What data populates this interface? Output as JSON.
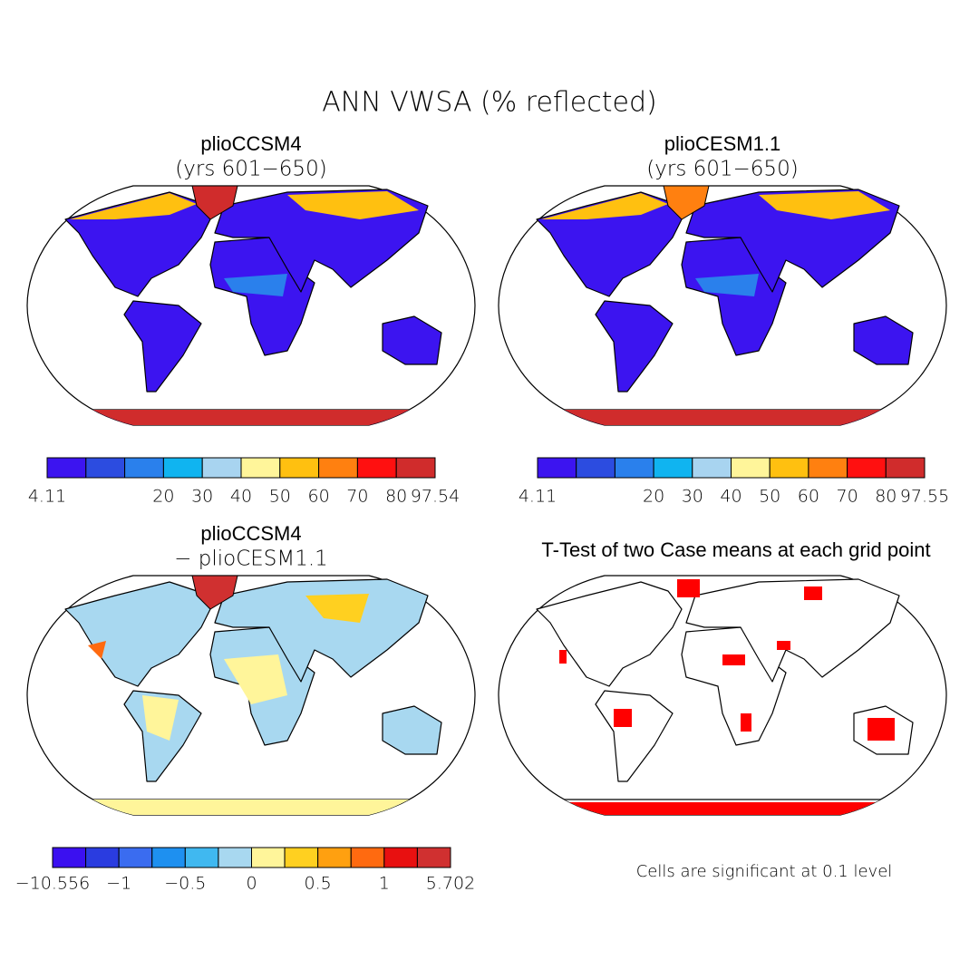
{
  "title": "ANN VWSA (% reflected)",
  "panels": [
    {
      "title": "plioCCSM4",
      "subtitle": "(yrs 601−650)",
      "colorbar": {
        "colors": [
          "#3c14f0",
          "#2c4ce0",
          "#2a80ec",
          "#10b4f0",
          "#a8d4f0",
          "#fff59a",
          "#ffc010",
          "#ff8010",
          "#ff1010",
          "#d02c2c"
        ],
        "boundaries": [
          4.11,
          null,
          null,
          20,
          30,
          40,
          50,
          60,
          70,
          80,
          97.54
        ]
      }
    },
    {
      "title": "plioCESM1.1",
      "subtitle": "(yrs 601−650)",
      "colorbar": {
        "colors": [
          "#3c14f0",
          "#2c4ce0",
          "#2a80ec",
          "#10b4f0",
          "#a8d4f0",
          "#fff59a",
          "#ffc010",
          "#ff8010",
          "#ff1010",
          "#d02c2c"
        ],
        "boundaries": [
          4.11,
          null,
          null,
          20,
          30,
          40,
          50,
          60,
          70,
          80,
          97.55
        ]
      }
    },
    {
      "title": "plioCCSM4",
      "subtitle": "− plioCESM1.1",
      "colorbar": {
        "colors": [
          "#3b10f0",
          "#2a3ce0",
          "#3a6cf0",
          "#1e90f0",
          "#40b8f0",
          "#a8d8f0",
          "#fff59a",
          "#ffd020",
          "#ffa010",
          "#ff6a10",
          "#e81010",
          "#d03030"
        ],
        "boundaries": [
          {
            "value": -10.556,
            "label": "−10.556"
          },
          null,
          {
            "value": -1,
            "label": "−1"
          },
          null,
          {
            "value": -0.5,
            "label": "−0.5"
          },
          null,
          0,
          null,
          0.5,
          null,
          1,
          null,
          5.702
        ]
      }
    },
    {
      "title": "T-Test of two Case means at each grid point",
      "note": "Cells are significant at 0.1 level"
    }
  ]
}
